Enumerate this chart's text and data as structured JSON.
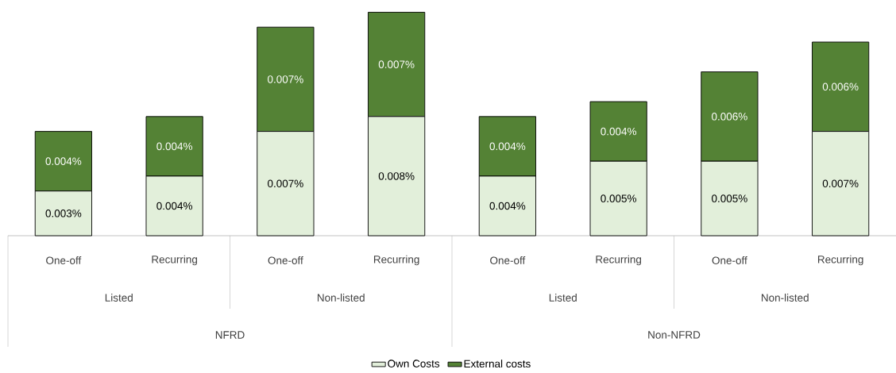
{
  "chart_data": {
    "type": "bar",
    "stacked": true,
    "categories": [
      "One-off",
      "Recurring",
      "One-off",
      "Recurring",
      "One-off",
      "Recurring",
      "One-off",
      "Recurring"
    ],
    "series": [
      {
        "name": "Own Costs",
        "color": "#e2efda",
        "values": [
          0.003,
          0.004,
          0.007,
          0.008,
          0.004,
          0.005,
          0.005,
          0.007
        ],
        "value_labels": [
          "0.003%",
          "0.004%",
          "0.007%",
          "0.008%",
          "0.004%",
          "0.005%",
          "0.005%",
          "0.007%"
        ]
      },
      {
        "name": "External costs",
        "color": "#548235",
        "values": [
          0.004,
          0.004,
          0.007,
          0.007,
          0.004,
          0.004,
          0.006,
          0.006
        ],
        "value_labels": [
          "0.004%",
          "0.004%",
          "0.007%",
          "0.007%",
          "0.004%",
          "0.004%",
          "0.006%",
          "0.006%"
        ]
      }
    ],
    "annotations": [
      "Listed",
      "Non-listed",
      "Listed",
      "Non-listed",
      "NFRD",
      "Non-NFRD"
    ],
    "legend": "bottom"
  }
}
